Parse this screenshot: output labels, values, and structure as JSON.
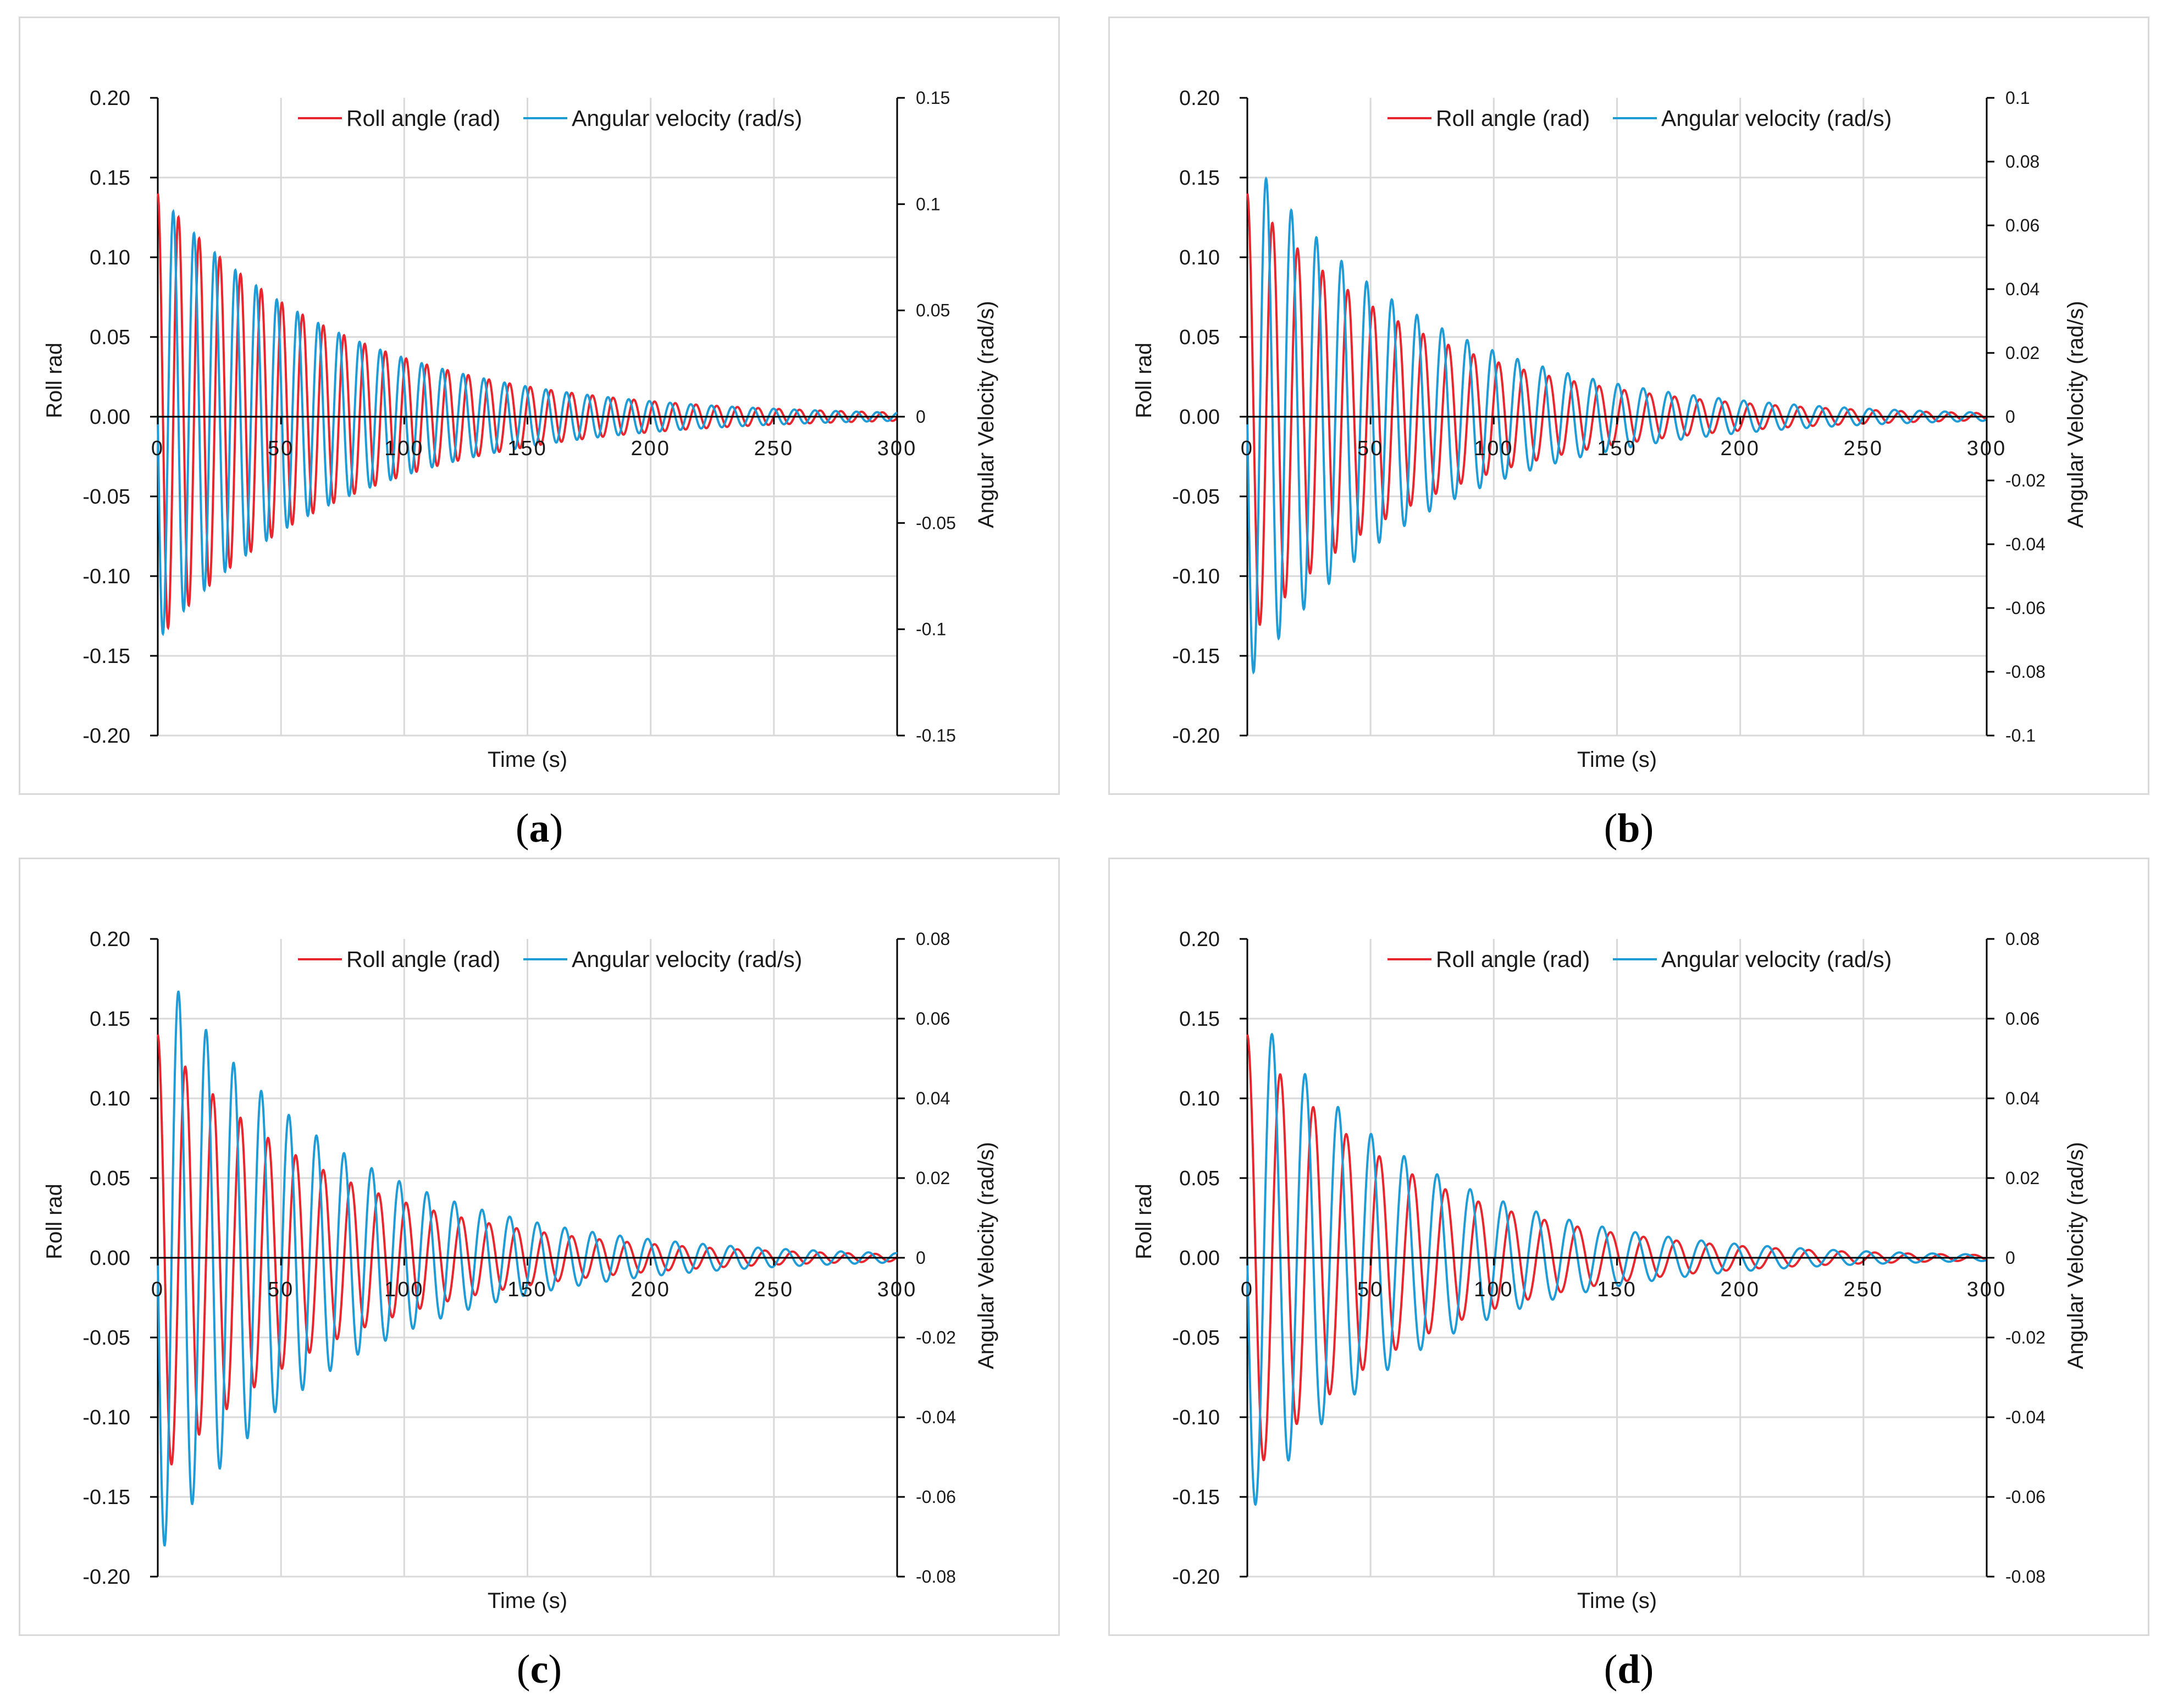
{
  "legend": {
    "roll": "Roll angle (rad)",
    "omega": "Angular velocity (rad/s)"
  },
  "colors": {
    "roll": "#e8262e",
    "omega": "#1f9bd6",
    "grid": "#d9d9d9",
    "axis": "#000000",
    "panel_border": "#d9d9d9"
  },
  "chart_data": [
    {
      "id": "a",
      "caption": {
        "open": "(",
        "letter": "a",
        "close": ")"
      },
      "type": "line",
      "xlabel": "Time (s)",
      "ylabel": "Roll rad",
      "y2label": "Angular Velocity (rad/s)",
      "xlim": [
        0,
        300
      ],
      "ylim": [
        -0.2,
        0.2
      ],
      "y2lim": [
        -0.15,
        0.15
      ],
      "xticks": [
        "0",
        "50",
        "100",
        "150",
        "200",
        "250",
        "300"
      ],
      "yticks": [
        "0.20",
        "0.15",
        "0.10",
        "0.05",
        "0.00",
        "-0.05",
        "-0.10",
        "-0.15",
        "-0.20"
      ],
      "y2ticks": [
        "0.15",
        "0.1",
        "0.05",
        "0",
        "-0.05",
        "-0.1",
        "-0.15"
      ],
      "series": [
        {
          "name": "Roll angle (rad)",
          "amp0": 0.14,
          "period_s": 8.4,
          "decay_time_s": 75,
          "phase": "cos"
        },
        {
          "name": "Angular velocity (rad/s)",
          "amp0": 0.105,
          "period_s": 8.4,
          "decay_time_s": 75,
          "phase": "-sin"
        }
      ]
    },
    {
      "id": "b",
      "caption": {
        "open": "(",
        "letter": "b",
        "close": ")"
      },
      "type": "line",
      "xlabel": "Time (s)",
      "ylabel": "Roll rad",
      "y2label": "Angular Velocity (rad/s)",
      "xlim": [
        0,
        300
      ],
      "ylim": [
        -0.2,
        0.2
      ],
      "y2lim": [
        -0.1,
        0.1
      ],
      "xticks": [
        "0",
        "50",
        "100",
        "150",
        "200",
        "250",
        "300"
      ],
      "yticks": [
        "0.20",
        "0.15",
        "0.10",
        "0.05",
        "0.00",
        "-0.05",
        "-0.10",
        "-0.15",
        "-0.20"
      ],
      "y2ticks": [
        "0.1",
        "0.08",
        "0.06",
        "0.04",
        "0.02",
        "0",
        "-0.02",
        "-0.04",
        "-0.06",
        "-0.08",
        "-0.1"
      ],
      "series": [
        {
          "name": "Roll angle (rad)",
          "amp0": 0.14,
          "period_s": 10.2,
          "decay_time_s": 72,
          "phase": "cos"
        },
        {
          "name": "Angular velocity (rad/s)",
          "amp0": 0.083,
          "period_s": 10.2,
          "decay_time_s": 72,
          "phase": "-sin"
        }
      ]
    },
    {
      "id": "c",
      "caption": {
        "open": "(",
        "letter": "c",
        "close": ")"
      },
      "type": "line",
      "xlabel": "Time (s)",
      "ylabel": "Roll rad",
      "y2label": "Angular Velocity (rad/s)",
      "xlim": [
        0,
        300
      ],
      "ylim": [
        -0.2,
        0.2
      ],
      "y2lim": [
        -0.08,
        0.08
      ],
      "xticks": [
        "0",
        "50",
        "100",
        "150",
        "200",
        "250",
        "300"
      ],
      "yticks": [
        "0.20",
        "0.15",
        "0.10",
        "0.05",
        "0.00",
        "-0.05",
        "-0.10",
        "-0.15",
        "-0.20"
      ],
      "y2ticks": [
        "0.08",
        "0.06",
        "0.04",
        "0.02",
        "0",
        "-0.02",
        "-0.04",
        "-0.06",
        "-0.08"
      ],
      "series": [
        {
          "name": "Roll angle (rad)",
          "amp0": 0.14,
          "period_s": 11.2,
          "decay_time_s": 72,
          "phase": "cos"
        },
        {
          "name": "Angular velocity (rad/s)",
          "amp0": 0.075,
          "period_s": 11.2,
          "decay_time_s": 72,
          "phase": "-sin"
        }
      ]
    },
    {
      "id": "d",
      "caption": {
        "open": "(",
        "letter": "d",
        "close": ")"
      },
      "type": "line",
      "xlabel": "Time (s)",
      "ylabel": "Roll rad",
      "y2label": "Angular Velocity (rad/s)",
      "xlim": [
        0,
        300
      ],
      "ylim": [
        -0.2,
        0.2
      ],
      "y2lim": [
        -0.08,
        0.08
      ],
      "xticks": [
        "0",
        "50",
        "100",
        "150",
        "200",
        "250",
        "300"
      ],
      "yticks": [
        "0.20",
        "0.15",
        "0.10",
        "0.05",
        "0.00",
        "-0.05",
        "-0.10",
        "-0.15",
        "-0.20"
      ],
      "y2ticks": [
        "0.08",
        "0.06",
        "0.04",
        "0.02",
        "0",
        "-0.02",
        "-0.04",
        "-0.06",
        "-0.08"
      ],
      "series": [
        {
          "name": "Roll angle (rad)",
          "amp0": 0.14,
          "period_s": 13.4,
          "decay_time_s": 68,
          "phase": "cos"
        },
        {
          "name": "Angular velocity (rad/s)",
          "amp0": 0.065,
          "period_s": 13.4,
          "decay_time_s": 68,
          "phase": "-sin"
        }
      ]
    }
  ]
}
